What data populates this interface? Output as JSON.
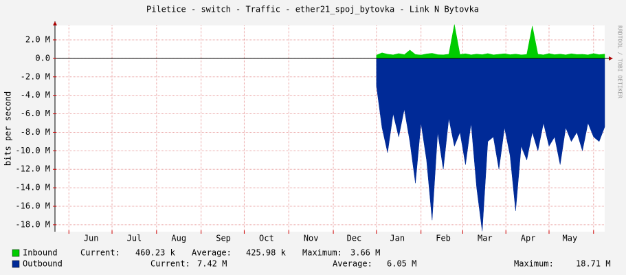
{
  "chart_data": {
    "type": "area",
    "title": "Piletice - switch - Traffic - ether21_spoj_bytovka - Link N Bytovka",
    "y_label": "bits per second",
    "watermark": "RRDTOOL / TOBI OETIKER",
    "xlim": [
      0,
      395
    ],
    "xticks": [
      {
        "value": 26,
        "label": "Jun"
      },
      {
        "value": 57,
        "label": "Jul"
      },
      {
        "value": 89,
        "label": "Aug"
      },
      {
        "value": 121,
        "label": "Sep"
      },
      {
        "value": 152,
        "label": "Oct"
      },
      {
        "value": 184,
        "label": "Nov"
      },
      {
        "value": 215,
        "label": "Dec"
      },
      {
        "value": 246,
        "label": "Jan"
      },
      {
        "value": 279,
        "label": "Feb"
      },
      {
        "value": 309,
        "label": "Mar"
      },
      {
        "value": 340,
        "label": "Apr"
      },
      {
        "value": 370,
        "label": "May"
      }
    ],
    "xgrid": [
      10,
      41,
      73,
      105,
      136,
      168,
      200,
      231,
      263,
      293,
      324,
      355,
      387
    ],
    "ylim": [
      -18750000,
      3560000
    ],
    "yticks": [
      {
        "value": 2000000,
        "label": "2.0 M"
      },
      {
        "value": 0,
        "label": "0.0"
      },
      {
        "value": -2000000,
        "label": "-2.0 M"
      },
      {
        "value": -4000000,
        "label": "-4.0 M"
      },
      {
        "value": -6000000,
        "label": "-6.0 M"
      },
      {
        "value": -8000000,
        "label": "-8.0 M"
      },
      {
        "value": -10000000,
        "label": "-10.0 M"
      },
      {
        "value": -12000000,
        "label": "-12.0 M"
      },
      {
        "value": -14000000,
        "label": "-14.0 M"
      },
      {
        "value": -16000000,
        "label": "-16.0 M"
      },
      {
        "value": -18000000,
        "label": "-18.0 M"
      }
    ],
    "grid": true,
    "x": [
      231,
      235,
      239,
      243,
      247,
      251,
      255,
      259,
      263,
      267,
      271,
      275,
      279,
      283,
      287,
      291,
      295,
      299,
      303,
      307,
      311,
      315,
      319,
      323,
      327,
      331,
      335,
      339,
      343,
      347,
      351,
      355,
      359,
      363,
      367,
      371,
      375,
      379,
      383,
      387,
      391,
      395
    ],
    "series": [
      {
        "name": "Inbound",
        "color": "#00cc00",
        "values": [
          350000,
          600000,
          450000,
          380000,
          520000,
          400000,
          900000,
          420000,
          360000,
          480000,
          550000,
          400000,
          380000,
          450000,
          3660000,
          420000,
          500000,
          380000,
          460000,
          400000,
          520000,
          380000,
          440000,
          500000,
          400000,
          460000,
          380000,
          420000,
          3500000,
          450000,
          380000,
          520000,
          400000,
          460000,
          380000,
          500000,
          420000,
          440000,
          380000,
          520000,
          400000,
          460230
        ],
        "stats": [
          {
            "label": "Current:",
            "value": "460.23 k"
          },
          {
            "label": "Average:",
            "value": "425.98 k"
          },
          {
            "label": "Maximum:",
            "value": "3.66 M"
          }
        ]
      },
      {
        "name": "Outbound",
        "color": "#002a97",
        "values": [
          -3000000,
          -7500000,
          -10200000,
          -6000000,
          -8500000,
          -5500000,
          -9000000,
          -13500000,
          -7000000,
          -11000000,
          -17500000,
          -8000000,
          -12000000,
          -6500000,
          -9500000,
          -8000000,
          -11500000,
          -7000000,
          -14000000,
          -18700000,
          -9000000,
          -8500000,
          -12000000,
          -7500000,
          -10500000,
          -16500000,
          -9500000,
          -11000000,
          -8000000,
          -10000000,
          -7000000,
          -9500000,
          -8500000,
          -11500000,
          -7500000,
          -9000000,
          -8000000,
          -10000000,
          -7000000,
          -8500000,
          -9000000,
          -7420000
        ],
        "stats": [
          {
            "label": "Current:",
            "value": "7.42 M"
          },
          {
            "label": "Average:",
            "value": "6.05 M"
          },
          {
            "label": "Maximum:",
            "value": "18.71 M"
          }
        ]
      }
    ]
  }
}
